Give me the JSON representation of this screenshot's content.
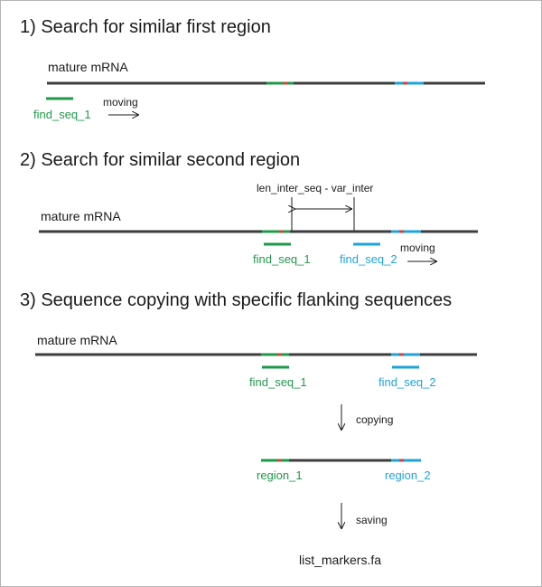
{
  "colors": {
    "mrna": "#3d3d3d",
    "green": "#1f9a4a",
    "blue": "#1ea4dc",
    "red": "#e23a2f",
    "text": "#1a1a1a",
    "border": "#b5b5b5"
  },
  "icons": {
    "right_arrow": "right-arrow-icon",
    "down_arrow": "down-arrow-icon",
    "double_arrow": "double-headed-arrow-icon"
  },
  "step1": {
    "title": "1) Search for similar first region",
    "mrna_label": "mature mRNA",
    "probe_label": "find_seq_1",
    "moving_label": "moving"
  },
  "step2": {
    "title": "2) Search for similar second region",
    "mrna_label": "mature mRNA",
    "distance_label": "len_inter_seq - var_inter",
    "probe1_label": "find_seq_1",
    "probe2_label": "find_seq_2",
    "moving_label": "moving"
  },
  "step3": {
    "title": "3) Sequence copying with specific flanking sequences",
    "mrna_label": "mature mRNA",
    "probe1_label": "find_seq_1",
    "probe2_label": "find_seq_2",
    "copying_label": "copying",
    "region1_label": "region_1",
    "region2_label": "region_2",
    "saving_label": "saving",
    "output_file": "list_markers.fa"
  }
}
